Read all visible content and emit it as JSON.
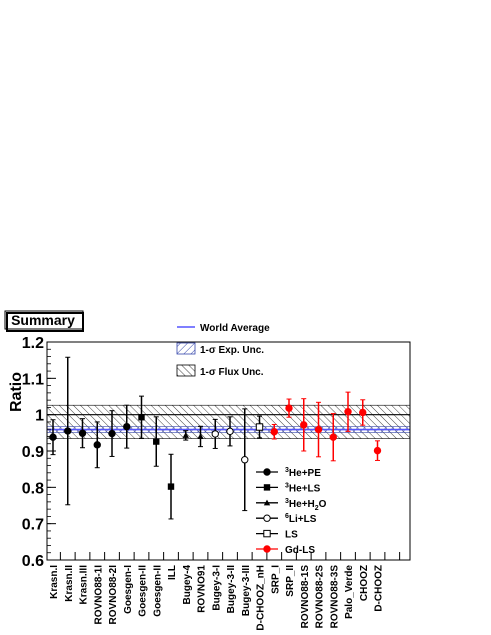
{
  "chart_data": {
    "type": "scatter",
    "title": "Summary",
    "ylabel": "Ratio",
    "xlabel": "",
    "ylim": [
      0.6,
      1.2
    ],
    "yticks": [
      "0.6",
      "0.7",
      "0.8",
      "0.9",
      "1",
      "1.1",
      "1.2"
    ],
    "categories": [
      "Krasn.I",
      "Krasn.II",
      "Krasn.III",
      "ROVNO88-1I",
      "ROVNO88-2I",
      "Goesgen-I",
      "Goesgen-II",
      "Goesgen-II",
      "ILL",
      "Bugey-4",
      "ROVNO91",
      "Bugey-3-I",
      "Bugey-3-II",
      "Bugey-3-III",
      "D-CHOOZ_nH",
      "SRP_I",
      "SRP_II",
      "ROVNO88-1S",
      "ROVNO88-2S",
      "ROVNO88-3S",
      "Palo_Verde",
      "CHOOZ",
      "D-CHOOZ"
    ],
    "world_average": 0.959,
    "exp_unc_band": [
      0.951,
      0.967
    ],
    "flux_unc_band": [
      0.934,
      1.026
    ],
    "unity_line": 1.0,
    "points": [
      {
        "label": "Krasn.I",
        "group": "3He+PE",
        "y": 0.938,
        "err": 0.048
      },
      {
        "label": "Krasn.II",
        "group": "3He+PE",
        "y": 0.955,
        "err": 0.203
      },
      {
        "label": "Krasn.III",
        "group": "3He+PE",
        "y": 0.949,
        "err": 0.04
      },
      {
        "label": "ROVNO88-1I",
        "group": "3He+PE",
        "y": 0.917,
        "err": 0.063
      },
      {
        "label": "ROVNO88-2I",
        "group": "3He+PE",
        "y": 0.948,
        "err": 0.063
      },
      {
        "label": "Goesgen-I",
        "group": "3He+PE",
        "y": 0.967,
        "err": 0.059
      },
      {
        "label": "Goesgen-II",
        "group": "3He+LS",
        "y": 0.993,
        "err": 0.058
      },
      {
        "label": "Goesgen-II",
        "group": "3He+LS",
        "y": 0.926,
        "err": 0.068
      },
      {
        "label": "ILL",
        "group": "3He+LS",
        "y": 0.802,
        "err": 0.089
      },
      {
        "label": "Bugey-4",
        "group": "3He+H2O",
        "y": 0.943,
        "err": 0.013
      },
      {
        "label": "ROVNO91",
        "group": "3He+H2O",
        "y": 0.94,
        "err": 0.028
      },
      {
        "label": "Bugey-3-I",
        "group": "6Li+LS",
        "y": 0.947,
        "err": 0.04
      },
      {
        "label": "Bugey-3-II",
        "group": "6Li+LS",
        "y": 0.954,
        "err": 0.04
      },
      {
        "label": "Bugey-3-III",
        "group": "6Li+LS",
        "y": 0.876,
        "err": 0.14
      },
      {
        "label": "D-CHOOZ_nH",
        "group": "LS",
        "y": 0.966,
        "err": 0.03
      },
      {
        "label": "SRP_I",
        "group": "Gd-LS",
        "y": 0.953,
        "err": 0.02
      },
      {
        "label": "SRP_II",
        "group": "Gd-LS",
        "y": 1.018,
        "err": 0.025
      },
      {
        "label": "ROVNO88-1S",
        "group": "Gd-LS",
        "y": 0.972,
        "err": 0.072
      },
      {
        "label": "ROVNO88-2S",
        "group": "Gd-LS",
        "y": 0.959,
        "err": 0.075
      },
      {
        "label": "ROVNO88-3S",
        "group": "Gd-LS",
        "y": 0.938,
        "err": 0.065
      },
      {
        "label": "Palo_Verde",
        "group": "Gd-LS",
        "y": 1.008,
        "err": 0.054
      },
      {
        "label": "CHOOZ",
        "group": "Gd-LS",
        "y": 1.006,
        "err": 0.035
      },
      {
        "label": "D-CHOOZ",
        "group": "Gd-LS",
        "y": 0.901,
        "err": 0.027
      }
    ],
    "legend_top": [
      {
        "key": "world_average",
        "text": "World Average"
      },
      {
        "key": "exp_unc",
        "text": "1-σ Exp. Unc."
      },
      {
        "key": "flux_unc",
        "text": "1-σ Flux Unc."
      }
    ],
    "legend_groups": [
      {
        "group": "3He+PE",
        "sup": "3",
        "text": "He+PE",
        "marker": "filled-circle",
        "color": "#000000"
      },
      {
        "group": "3He+LS",
        "sup": "3",
        "text": "He+LS",
        "marker": "filled-square",
        "color": "#000000"
      },
      {
        "group": "3He+H2O",
        "sup": "3",
        "text": "He+H",
        "sub": "2",
        "tail": "O",
        "marker": "filled-triangle",
        "color": "#000000"
      },
      {
        "group": "6Li+LS",
        "sup": "6",
        "text": "Li+LS",
        "marker": "open-circle",
        "color": "#000000"
      },
      {
        "group": "LS",
        "sup": "",
        "text": "LS",
        "marker": "open-square",
        "color": "#000000"
      },
      {
        "group": "Gd-LS",
        "sup": "",
        "text": "Gd-LS",
        "marker": "filled-circle",
        "color": "#ff0000"
      }
    ],
    "colors": {
      "world_average": "#5555ff",
      "data_black": "#000000",
      "data_red": "#ff0000",
      "frame": "#000000"
    }
  }
}
